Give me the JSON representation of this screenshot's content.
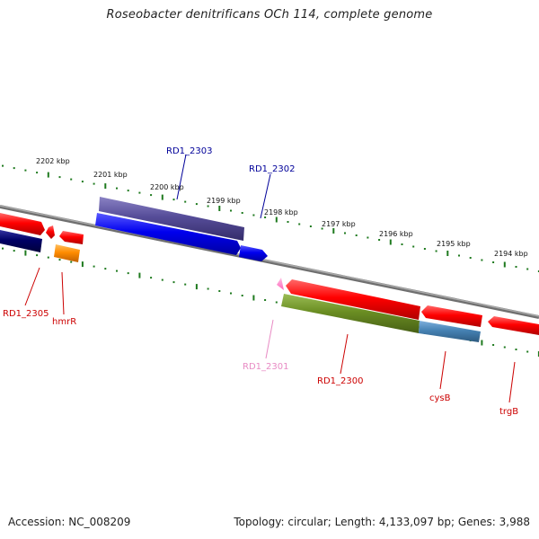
{
  "title": "Roseobacter denitrificans OCh 114, complete genome",
  "footer": {
    "accession": "Accession: NC_008209",
    "summary": "Topology: circular; Length: 4,133,097 bp; Genes: 3,988"
  },
  "scale_labels": [
    "2202 kbp",
    "2201 kbp",
    "2200 kbp",
    "2199 kbp",
    "2198 kbp",
    "2197 kbp",
    "2196 kbp",
    "2195 kbp",
    "2194 kbp"
  ],
  "genes": [
    {
      "label": "RD1_2305",
      "color": "#cc0000"
    },
    {
      "label": "hmrR",
      "color": "#cc0000"
    },
    {
      "label": "RD1_2303",
      "color": "#000099"
    },
    {
      "label": "RD1_2302",
      "color": "#000099"
    },
    {
      "label": "RD1_2301",
      "color": "#e88bc4"
    },
    {
      "label": "RD1_2300",
      "color": "#cc0000"
    },
    {
      "label": "cysB",
      "color": "#cc0000"
    },
    {
      "label": "trgB",
      "color": "#cc0000"
    }
  ],
  "colors": {
    "backbone": "#8a8a8a",
    "ticks": "#1f7a1f",
    "red_feature": "#ff0000",
    "blue_feature": "#0000ee",
    "purple_feature": "#564d99",
    "navy_feature": "#000066",
    "olive_feature": "#6b8e23",
    "steel_feature": "#4682b4",
    "orange_feature": "#ff8c00",
    "pink_feature": "#ff88cc"
  }
}
